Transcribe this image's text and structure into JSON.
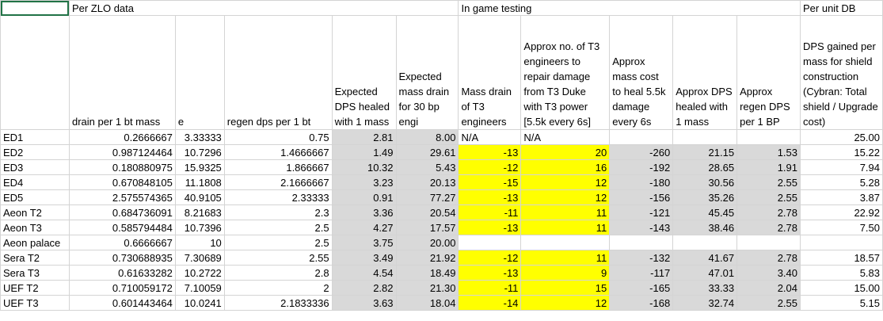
{
  "groups": {
    "zlo": "Per ZLO data",
    "game": "In game testing",
    "unit": "Per unit DB"
  },
  "headers": [
    "",
    "drain per 1 bt mass",
    "e",
    "regen dps per 1 bt",
    "Expected DPS healed with 1 mass",
    "Expected mass drain for 30 bp engi",
    "Mass drain of T3 engineers",
    "Approx no. of T3 engineers to repair damage from T3 Duke with T3 power [5.5k every 6s]",
    "Approx mass cost to heal 5.5k damage every 6s",
    "Approx DPS healed with 1 mass",
    "Approx regen DPS per 1 BP",
    "DPS gained per mass for shield construction (Cybran: Total shield / Upgrade cost)"
  ],
  "rows": [
    [
      "ED1",
      "0.2666667",
      "3.33333",
      "0.75",
      "2.81",
      "8.00",
      "N/A",
      "N/A",
      "",
      "",
      "",
      "25.00"
    ],
    [
      "ED2",
      "0.987124464",
      "10.7296",
      "1.4666667",
      "1.49",
      "29.61",
      "-13",
      "20",
      "-260",
      "21.15",
      "1.53",
      "15.22"
    ],
    [
      "ED3",
      "0.180880975",
      "15.9325",
      "1.866667",
      "10.32",
      "5.43",
      "-12",
      "16",
      "-192",
      "28.65",
      "1.91",
      "7.94"
    ],
    [
      "ED4",
      "0.670848105",
      "11.1808",
      "2.1666667",
      "3.23",
      "20.13",
      "-15",
      "12",
      "-180",
      "30.56",
      "2.55",
      "5.28"
    ],
    [
      "ED5",
      "2.575574365",
      "40.9105",
      "2.33333",
      "0.91",
      "77.27",
      "-13",
      "12",
      "-156",
      "35.26",
      "2.55",
      "3.87"
    ],
    [
      "Aeon T2",
      "0.684736091",
      "8.21683",
      "2.3",
      "3.36",
      "20.54",
      "-11",
      "11",
      "-121",
      "45.45",
      "2.78",
      "22.92"
    ],
    [
      "Aeon T3",
      "0.585794484",
      "10.7396",
      "2.5",
      "4.27",
      "17.57",
      "-13",
      "11",
      "-143",
      "38.46",
      "2.78",
      "7.50"
    ],
    [
      "Aeon palace",
      "0.6666667",
      "10",
      "2.5",
      "3.75",
      "20.00",
      "",
      "",
      "",
      "",
      "",
      ""
    ],
    [
      "Sera T2",
      "0.730688935",
      "7.30689",
      "2.55",
      "3.49",
      "21.92",
      "-12",
      "11",
      "-132",
      "41.67",
      "2.78",
      "18.57"
    ],
    [
      "Sera T3",
      "0.61633282",
      "10.2722",
      "2.8",
      "4.54",
      "18.49",
      "-13",
      "9",
      "-117",
      "47.01",
      "3.40",
      "5.83"
    ],
    [
      "UEF T2",
      "0.710059172",
      "7.10059",
      "2",
      "2.82",
      "21.30",
      "-11",
      "15",
      "-165",
      "33.33",
      "2.04",
      "15.00"
    ],
    [
      "UEF T3",
      "0.601443464",
      "10.0241",
      "2.1833336",
      "3.63",
      "18.04",
      "-14",
      "12",
      "-168",
      "32.74",
      "2.55",
      "5.15"
    ]
  ]
}
